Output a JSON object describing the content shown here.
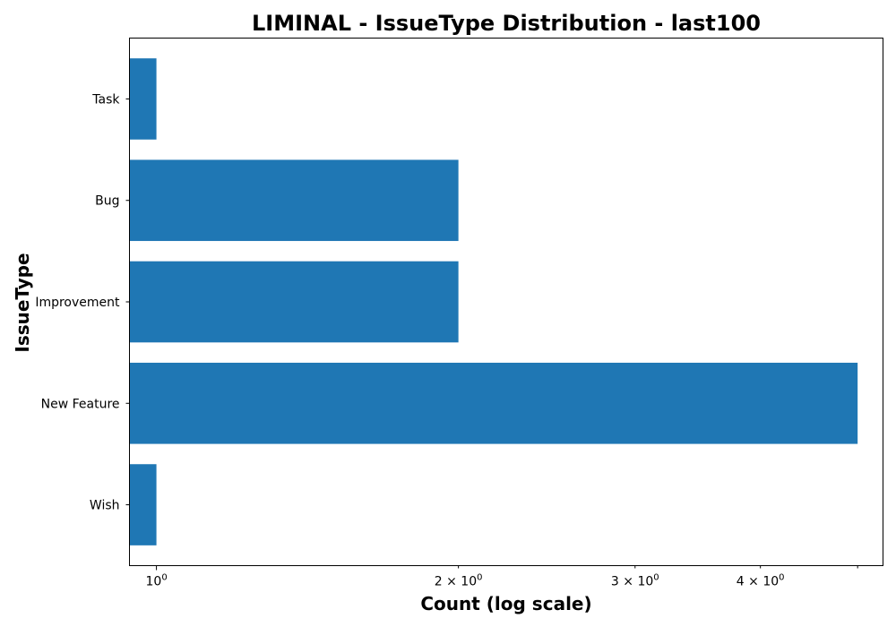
{
  "chart_data": {
    "type": "bar",
    "orientation": "horizontal",
    "title": "LIMINAL - IssueType Distribution - last100",
    "xlabel": "Count (log scale)",
    "ylabel": "IssueType",
    "x_scale": "log",
    "xlim": [
      0.94,
      5.3
    ],
    "categories": [
      "Task",
      "Bug",
      "Improvement",
      "New Feature",
      "Wish"
    ],
    "values": [
      1,
      2,
      2,
      5,
      1
    ],
    "x_ticks": [
      {
        "value": 1,
        "base": "10",
        "exp": "0",
        "coef": ""
      },
      {
        "value": 2,
        "base": "10",
        "exp": "0",
        "coef": "2 × "
      },
      {
        "value": 3,
        "base": "10",
        "exp": "0",
        "coef": "3 × "
      },
      {
        "value": 4,
        "base": "10",
        "exp": "0",
        "coef": "4 × "
      }
    ],
    "x_minor_ticks": [
      5
    ],
    "bar_color": "#1f77b4",
    "grid": false
  }
}
